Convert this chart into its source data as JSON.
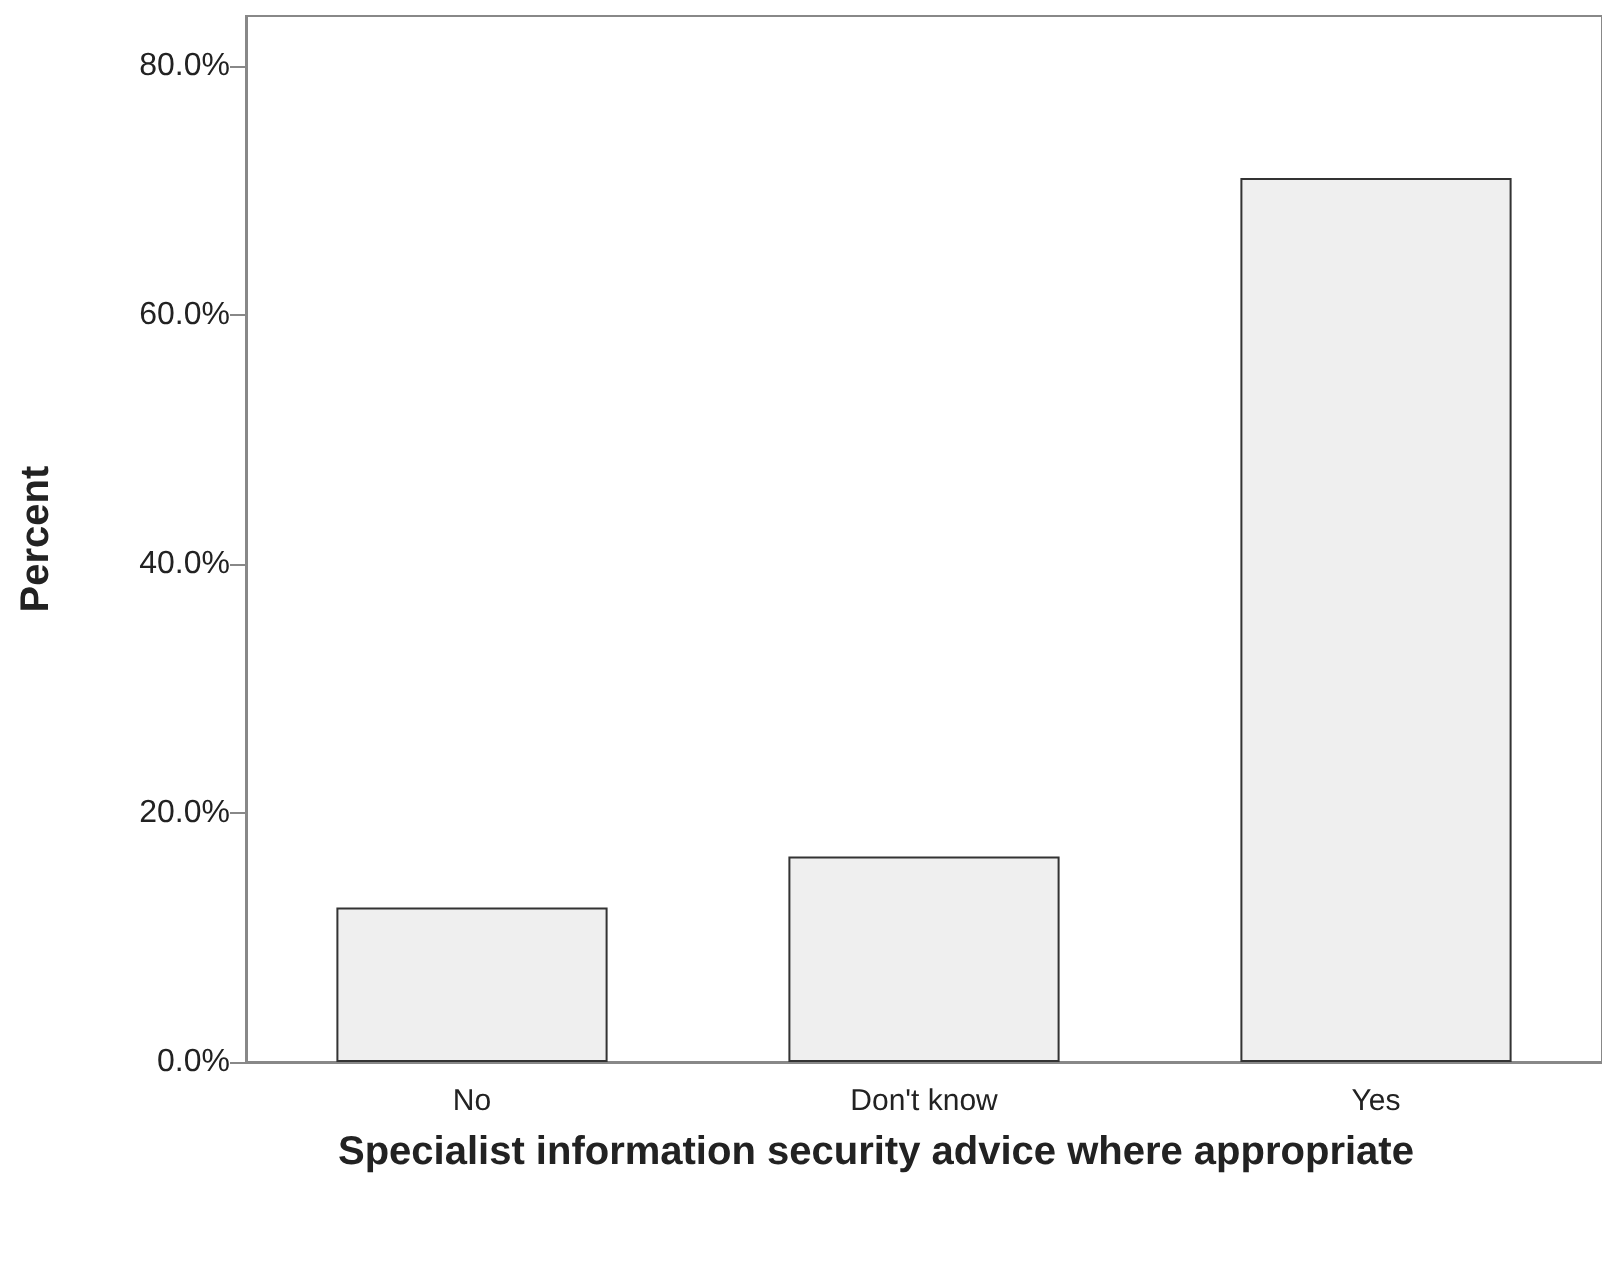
{
  "chart_data": {
    "type": "bar",
    "xlabel": "Specialist information security advice where appropriate",
    "ylabel": "Percent",
    "categories": [
      "No",
      "Don't know",
      "Yes"
    ],
    "values": [
      12.4,
      16.5,
      71.0
    ],
    "color": "#efefef",
    "ylim": [
      0,
      84
    ],
    "yticks": [
      {
        "value": 0,
        "label": "0.0%"
      },
      {
        "value": 20,
        "label": "20.0%"
      },
      {
        "value": 40,
        "label": "40.0%"
      },
      {
        "value": 60,
        "label": "60.0%"
      },
      {
        "value": 80,
        "label": "80.0%"
      }
    ],
    "grid": false
  }
}
